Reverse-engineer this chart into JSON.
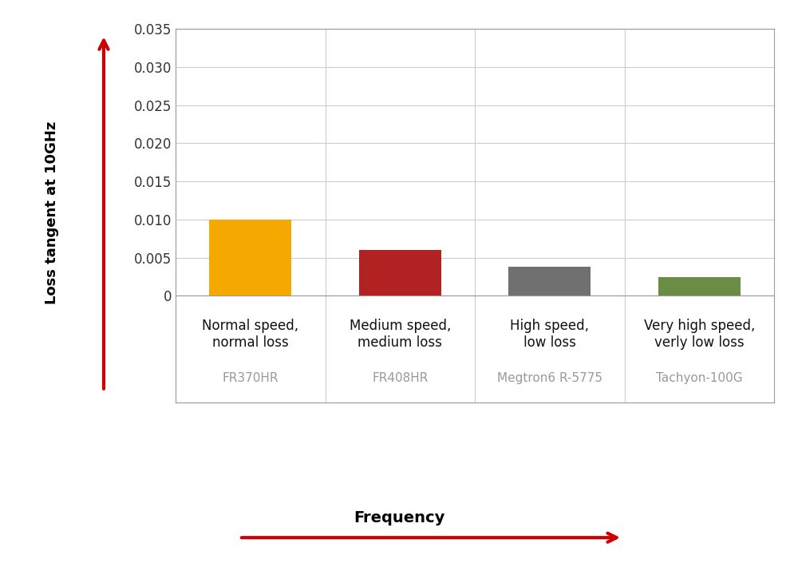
{
  "categories": [
    "Normal speed,\nnormal loss",
    "Medium speed,\nmedium loss",
    "High speed,\nlow loss",
    "Very high speed,\nverly low loss"
  ],
  "sublabels": [
    "FR370HR",
    "FR408HR",
    "Megtron6 R-5775",
    "Tachyon-100G"
  ],
  "values": [
    0.01,
    0.006,
    0.0038,
    0.0024
  ],
  "bar_colors": [
    "#F5A800",
    "#B22222",
    "#707070",
    "#6B8C45"
  ],
  "bar_width": 0.55,
  "ylim": [
    -0.014,
    0.035
  ],
  "yticks": [
    0,
    0.005,
    0.01,
    0.015,
    0.02,
    0.025,
    0.03,
    0.035
  ],
  "ylabel": "Loss tangent at 10GHz",
  "xlabel": "Frequency",
  "background_color": "#ffffff",
  "grid_color": "#cccccc",
  "arrow_color": "#CC0000",
  "sublabel_color": "#999999",
  "cat_label_fontsize": 12,
  "sublabel_fontsize": 11,
  "tick_fontsize": 12,
  "ylabel_fontsize": 13,
  "freq_fontsize": 14
}
